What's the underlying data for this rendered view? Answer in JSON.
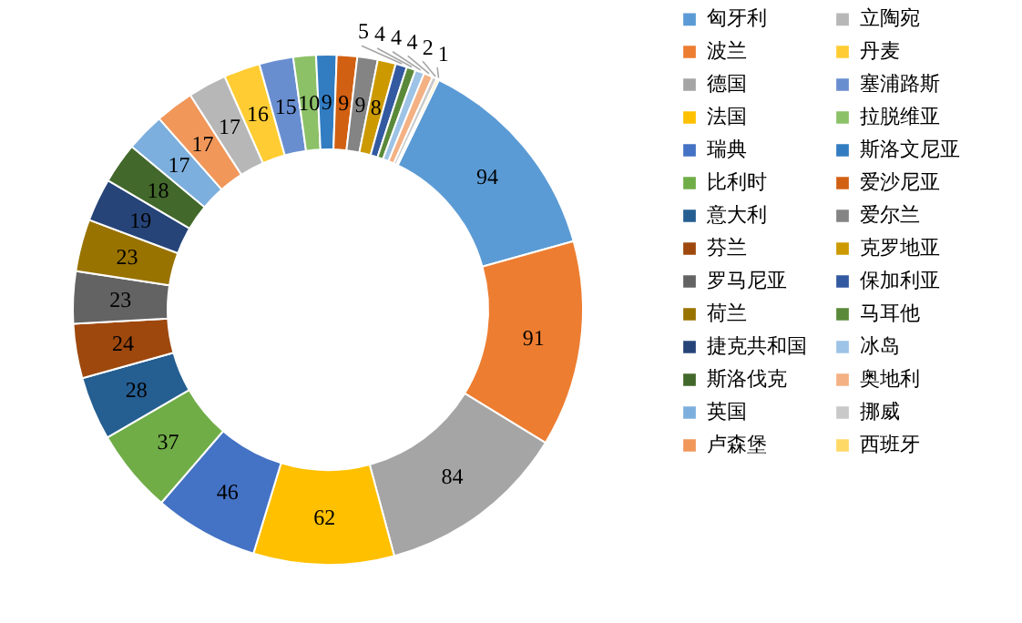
{
  "chart_data": {
    "type": "donut",
    "categories": [
      "匈牙利",
      "波兰",
      "德国",
      "法国",
      "瑞典",
      "比利时",
      "意大利",
      "芬兰",
      "罗马尼亚",
      "荷兰",
      "捷克共和国",
      "斯洛伐克",
      "英国",
      "卢森堡",
      "立陶宛",
      "丹麦",
      "塞浦路斯",
      "拉脱维亚",
      "斯洛文尼亚",
      "爱沙尼亚",
      "爱尔兰",
      "克罗地亚",
      "保加利亚",
      "马耳他",
      "冰岛",
      "奥地利",
      "挪威",
      "西班牙"
    ],
    "values": [
      94,
      91,
      84,
      62,
      46,
      37,
      28,
      24,
      23,
      23,
      19,
      18,
      17,
      17,
      17,
      16,
      15,
      10,
      9,
      9,
      9,
      8,
      5,
      4,
      4,
      4,
      2,
      1
    ],
    "colors": [
      "#5b9bd5",
      "#ed7d31",
      "#a5a5a5",
      "#ffc000",
      "#4472c4",
      "#70ad47",
      "#255e91",
      "#9e480e",
      "#636363",
      "#997300",
      "#264478",
      "#43682b",
      "#7cafdd",
      "#f1975a",
      "#b7b7b7",
      "#ffcd33",
      "#698ed0",
      "#8cc168",
      "#327dc2",
      "#d26012",
      "#848484",
      "#cc9a00",
      "#335aa1",
      "#5a8a39",
      "#9dc3e6",
      "#f4b183",
      "#c9c9c9",
      "#ffd966"
    ],
    "data_labels": true,
    "legend": "right"
  }
}
